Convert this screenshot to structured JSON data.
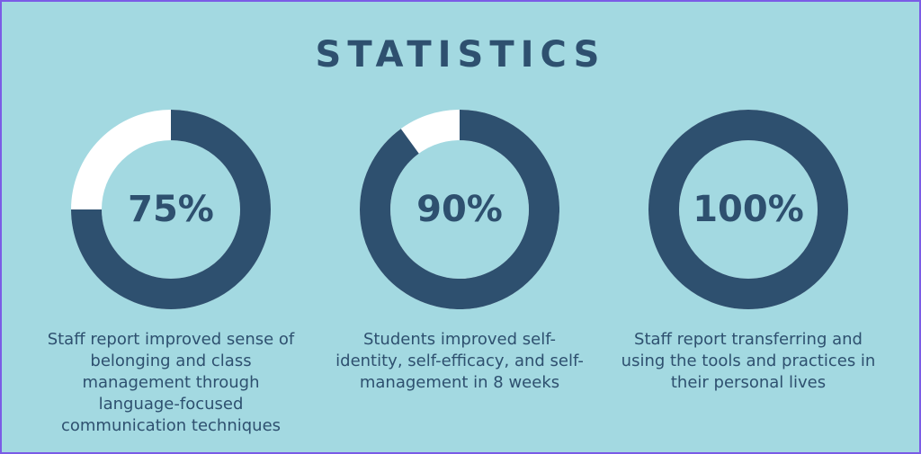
{
  "title": "STATISTICS",
  "colors": {
    "background": "#a3d9e1",
    "ring": "#2e506f",
    "ring_remainder": "#ffffff",
    "text": "#2e506f"
  },
  "stats": [
    {
      "percent_label": "75%",
      "value": 75,
      "caption": "Staff report improved sense of belonging and class management through language-focused communication techniques"
    },
    {
      "percent_label": "90%",
      "value": 90,
      "caption": "Students improved self-identity, self-efficacy, and self-management in 8 weeks"
    },
    {
      "percent_label": "100%",
      "value": 100,
      "caption": "Staff report transferring and using the tools and practices in their personal lives"
    }
  ]
}
